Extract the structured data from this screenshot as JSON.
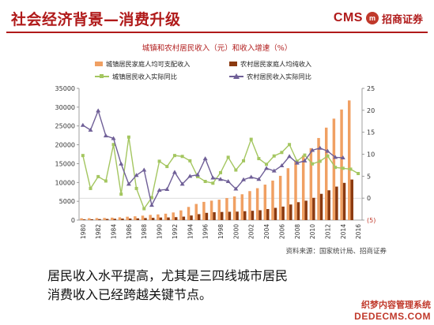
{
  "header": {
    "title": "社会经济背景—消费升级",
    "brand_cms": "CMS",
    "brand_mark": "m",
    "brand_name": "招商证券"
  },
  "colors": {
    "title_red": "#b01a1a",
    "urban_bar": "#f0a063",
    "rural_bar": "#8b3a10",
    "urban_line": "#a4c660",
    "rural_line": "#6f5f97"
  },
  "footer": {
    "source": "资料来源：国家统计局、招商证券",
    "caption_line1": "居民收入水平提高，尤其是三四线城市居民",
    "caption_line2": "消费收入已经跨越关键节点。",
    "watermark_line1": "织梦内容管理系统",
    "watermark_line2": "DEDECMS.COM"
  },
  "chart_data": {
    "type": "bar",
    "title": "城镇和农村居民收入（元）和收入增速（%）",
    "x": [
      1980,
      1981,
      1982,
      1983,
      1984,
      1985,
      1986,
      1987,
      1988,
      1989,
      1990,
      1991,
      1992,
      1993,
      1994,
      1995,
      1996,
      1997,
      1998,
      1999,
      2000,
      2001,
      2002,
      2003,
      2004,
      2005,
      2006,
      2007,
      2008,
      2009,
      2010,
      2011,
      2012,
      2013,
      2014,
      2015,
      2016
    ],
    "x_tick_labels": [
      "1980",
      "1982",
      "1984",
      "1986",
      "1988",
      "1990",
      "1992",
      "1994",
      "1996",
      "1998",
      "2000",
      "2002",
      "2004",
      "2006",
      "2008",
      "2010",
      "2012",
      "2014",
      "2016"
    ],
    "left_axis": {
      "range": [
        0,
        35000
      ],
      "ticks": [
        0,
        5000,
        10000,
        15000,
        20000,
        25000,
        30000,
        35000
      ]
    },
    "right_axis": {
      "range": [
        -5,
        25
      ],
      "ticks": [
        -5,
        0,
        5,
        10,
        15,
        20,
        25
      ],
      "tick_labels": [
        "(5)",
        "0",
        "5",
        "10",
        "15",
        "20",
        "25"
      ]
    },
    "series": [
      {
        "name": "城镇居民家庭人均可支配收入",
        "kind": "bar",
        "axis": "left",
        "color": "#f0a063",
        "values": [
          478,
          500,
          535,
          565,
          652,
          739,
          900,
          1002,
          1180,
          1374,
          1510,
          1701,
          2027,
          2577,
          3496,
          4283,
          4839,
          5160,
          5425,
          5854,
          6280,
          6860,
          7703,
          8472,
          9422,
          10493,
          11759,
          13786,
          15781,
          17175,
          19109,
          21810,
          24565,
          26955,
          29381,
          31790,
          null
        ]
      },
      {
        "name": "农村居民家庭人均纯收入",
        "kind": "bar",
        "axis": "left",
        "color": "#8b3a10",
        "values": [
          191,
          223,
          270,
          310,
          355,
          398,
          424,
          463,
          545,
          602,
          686,
          709,
          784,
          922,
          1221,
          1578,
          1926,
          2090,
          2162,
          2210,
          2253,
          2366,
          2476,
          2622,
          2936,
          3255,
          3587,
          4140,
          4761,
          5153,
          5919,
          6977,
          7917,
          8896,
          9892,
          10772,
          null
        ]
      },
      {
        "name": "城镇居民收入实际同比",
        "kind": "line",
        "axis": "right",
        "marker": "square",
        "color": "#a4c660",
        "values": [
          9.7,
          2.2,
          4.9,
          3.9,
          12.2,
          0.9,
          13.9,
          2.2,
          -2.4,
          0.1,
          8.4,
          7.2,
          9.7,
          9.5,
          8.5,
          4.9,
          3.8,
          3.4,
          5.8,
          9.3,
          6.4,
          8.5,
          13.4,
          9.0,
          7.7,
          9.6,
          10.4,
          12.2,
          8.4,
          9.8,
          7.8,
          8.4,
          9.6,
          7.0,
          6.8,
          6.6,
          5.6
        ]
      },
      {
        "name": "农村居民收入实际同比",
        "kind": "line",
        "axis": "right",
        "marker": "triangle",
        "color": "#6f5f97",
        "values": [
          16.6,
          15.5,
          19.9,
          14.2,
          13.6,
          7.8,
          3.2,
          5.2,
          6.4,
          -1.6,
          1.8,
          2.0,
          5.9,
          3.2,
          5.0,
          5.3,
          9.0,
          4.6,
          4.3,
          3.8,
          2.1,
          4.2,
          4.8,
          4.3,
          6.8,
          6.2,
          7.4,
          9.5,
          8.0,
          8.5,
          10.9,
          11.4,
          10.7,
          9.3,
          9.2,
          null,
          null
        ]
      }
    ]
  }
}
